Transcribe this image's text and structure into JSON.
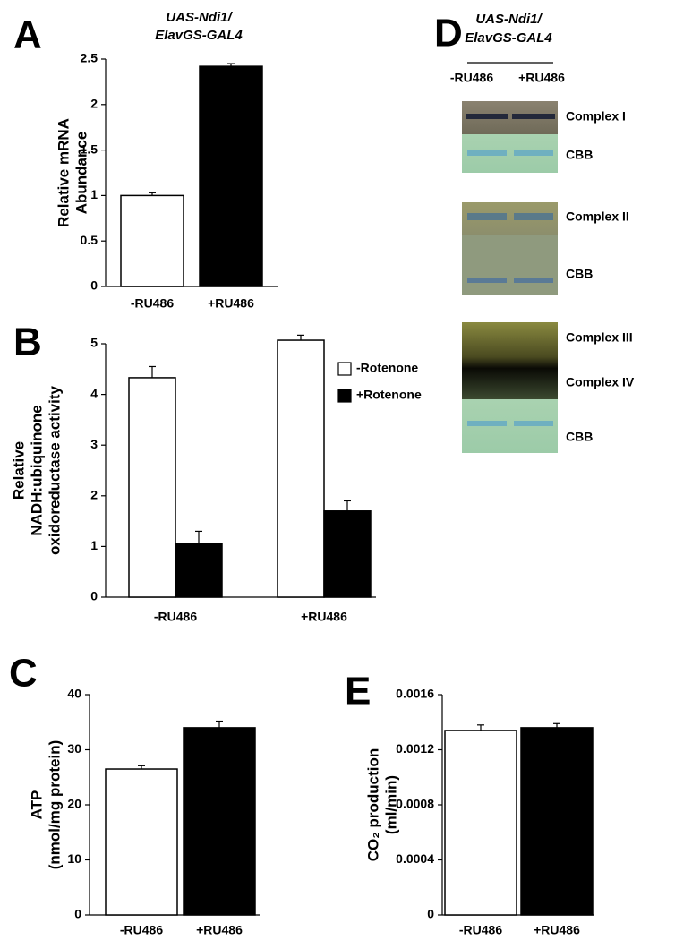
{
  "chart_data": [
    {
      "type": "bar",
      "panel": "A",
      "title": [
        "UAS-Ndi1/",
        "ElavGS-GAL4"
      ],
      "ylabel": [
        "Relative mRNA",
        "Abundance"
      ],
      "categories": [
        "-RU486",
        "+RU486"
      ],
      "values": [
        1,
        2.42
      ],
      "errors": [
        0.03,
        0.03
      ],
      "colors": [
        "#ffffff",
        "#000000"
      ],
      "ylim": [
        0,
        2.5
      ],
      "yticks": [
        0,
        0.5,
        1,
        1.5,
        2,
        2.5
      ]
    },
    {
      "type": "grouped_bar",
      "panel": "B",
      "ylabel": [
        "Relative",
        "NADH:ubiquinone",
        "oxidoreductase activity"
      ],
      "categories": [
        "-RU486",
        "+RU486"
      ],
      "series": [
        {
          "name": "-Rotenone",
          "color": "#ffffff",
          "values": [
            4.33,
            5.07
          ],
          "errors": [
            0.22,
            0.1
          ]
        },
        {
          "name": "+Rotenone",
          "color": "#000000",
          "values": [
            1.05,
            1.7
          ],
          "errors": [
            0.25,
            0.2
          ]
        }
      ],
      "ylim": [
        0,
        5
      ],
      "yticks": [
        0,
        1,
        2,
        3,
        4,
        5
      ],
      "legend": "upper right"
    },
    {
      "type": "bar",
      "panel": "C",
      "ylabel": [
        "ATP",
        "(nmol/mg protein)"
      ],
      "categories": [
        "-RU486",
        "+RU486"
      ],
      "values": [
        26.5,
        34
      ],
      "errors": [
        0.6,
        1.2
      ],
      "colors": [
        "#ffffff",
        "#000000"
      ],
      "ylim": [
        0,
        40
      ],
      "yticks": [
        0,
        10,
        20,
        30,
        40
      ]
    },
    {
      "type": "bar",
      "panel": "E",
      "ylabel": [
        "CO₂ production",
        "(ml/min)"
      ],
      "categories": [
        "-RU486",
        "+RU486"
      ],
      "values": [
        0.00134,
        0.00136
      ],
      "errors": [
        4e-05,
        3e-05
      ],
      "colors": [
        "#ffffff",
        "#000000"
      ],
      "ylim": [
        0,
        0.0016
      ],
      "yticks": [
        0,
        0.0004,
        0.0008,
        0.0012,
        0.0016
      ]
    }
  ],
  "panel_d": {
    "panel": "D",
    "title": [
      "UAS-Ndi1/",
      "ElavGS-GAL4"
    ],
    "lanes": [
      "-RU486",
      "+RU486"
    ],
    "bands": [
      "Complex I",
      "CBB",
      "Complex II",
      "CBB",
      "Complex III",
      "Complex IV",
      "CBB"
    ]
  }
}
